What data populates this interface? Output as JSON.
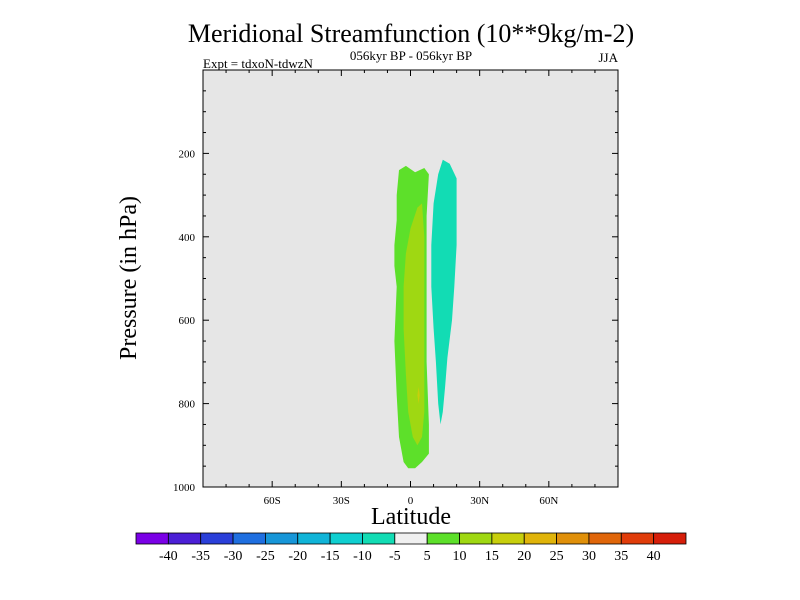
{
  "chart_data": {
    "type": "contour",
    "title": "Meridional Streamfunction (10**9kg/m-2)",
    "subtitle": "056kyr BP - 056kyr BP",
    "left_note": "Expt = tdxoN-tdwzN",
    "right_note": "JJA",
    "xlabel": "Latitude",
    "ylabel": "Pressure (in hPa)",
    "x_ticks": [
      {
        "value": -60,
        "label": "60S"
      },
      {
        "value": -30,
        "label": "30S"
      },
      {
        "value": 0,
        "label": "0"
      },
      {
        "value": 30,
        "label": "30N"
      },
      {
        "value": 60,
        "label": "60N"
      }
    ],
    "y_ticks": [
      {
        "value": 200,
        "label": "200"
      },
      {
        "value": 400,
        "label": "400"
      },
      {
        "value": 600,
        "label": "600"
      },
      {
        "value": 800,
        "label": "800"
      },
      {
        "value": 1000,
        "label": "1000"
      }
    ],
    "xlim": [
      -90,
      90
    ],
    "ylim": [
      0,
      1000
    ],
    "y_inverted": true,
    "background_color": "#e6e6e6",
    "colorbar": {
      "labels": [
        "-40",
        "-35",
        "-30",
        "-25",
        "-20",
        "-15",
        "-10",
        "-5",
        "5",
        "10",
        "15",
        "20",
        "25",
        "30",
        "35",
        "40"
      ],
      "colors": [
        "#7a00e6",
        "#4b1fd6",
        "#2a3fd9",
        "#1f6fe0",
        "#1796d8",
        "#10b4d8",
        "#0fcfd0",
        "#12dcb4",
        "#f0f0f0",
        "#5de02a",
        "#9fd812",
        "#c8cf0c",
        "#e0b40a",
        "#e0900a",
        "#e0660a",
        "#e03c0a",
        "#d61e0a"
      ]
    },
    "regions": [
      {
        "name": "positive-5-to-10",
        "color": "#5de02a",
        "polygon": [
          [
            -5,
            240
          ],
          [
            -2,
            230
          ],
          [
            2,
            245
          ],
          [
            6,
            235
          ],
          [
            8,
            250
          ],
          [
            7,
            350
          ],
          [
            7,
            500
          ],
          [
            7,
            700
          ],
          [
            8,
            850
          ],
          [
            8,
            920
          ],
          [
            5,
            940
          ],
          [
            2,
            955
          ],
          [
            -1,
            955
          ],
          [
            -3,
            940
          ],
          [
            -5,
            880
          ],
          [
            -6,
            780
          ],
          [
            -7,
            650
          ],
          [
            -6,
            520
          ],
          [
            -7,
            470
          ],
          [
            -7,
            420
          ],
          [
            -6,
            360
          ],
          [
            -6,
            300
          ]
        ]
      },
      {
        "name": "positive-10-to-15",
        "color": "#9fd812",
        "polygon": [
          [
            3,
            330
          ],
          [
            5,
            320
          ],
          [
            6,
            400
          ],
          [
            6,
            550
          ],
          [
            6,
            700
          ],
          [
            6,
            820
          ],
          [
            5,
            880
          ],
          [
            3,
            900
          ],
          [
            1,
            880
          ],
          [
            -1,
            820
          ],
          [
            -2,
            730
          ],
          [
            -3,
            620
          ],
          [
            -3,
            520
          ],
          [
            -2,
            440
          ],
          [
            0,
            380
          ]
        ]
      },
      {
        "name": "positive-15-to-20",
        "color": "#c8cf0c",
        "polygon": [
          [
            3.5,
            760
          ],
          [
            4,
            780
          ],
          [
            3.5,
            800
          ],
          [
            3,
            780
          ]
        ]
      },
      {
        "name": "negative-10-to-5",
        "color": "#12dcb4",
        "polygon": [
          [
            14,
            215
          ],
          [
            17,
            225
          ],
          [
            20,
            260
          ],
          [
            20,
            320
          ],
          [
            20,
            420
          ],
          [
            19,
            520
          ],
          [
            18,
            600
          ],
          [
            16,
            690
          ],
          [
            15,
            760
          ],
          [
            14,
            820
          ],
          [
            13,
            850
          ],
          [
            12,
            800
          ],
          [
            11,
            700
          ],
          [
            10,
            620
          ],
          [
            9,
            520
          ],
          [
            9,
            420
          ],
          [
            10,
            320
          ],
          [
            12,
            250
          ]
        ]
      }
    ]
  }
}
